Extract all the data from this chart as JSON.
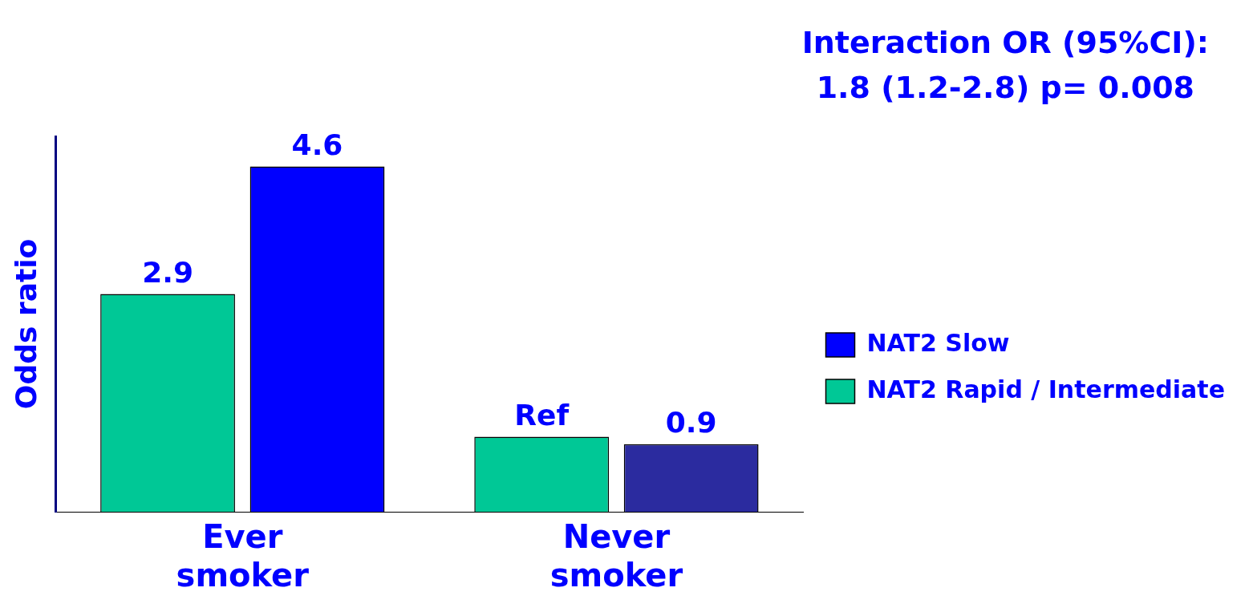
{
  "chart_data": {
    "type": "bar",
    "ylabel": "Odds ratio",
    "categories": [
      "Ever\nsmoker",
      "Never\nsmoker"
    ],
    "series": [
      {
        "name": "NAT2 Rapid / Intermediate",
        "color": "#00c896",
        "values": [
          2.9,
          1
        ],
        "value_labels": [
          "2.9",
          "Ref"
        ]
      },
      {
        "name": "NAT2 Slow",
        "colors": [
          "#0000ff",
          "#2b2b9f"
        ],
        "values": [
          4.6,
          0.9
        ],
        "value_labels": [
          "4.6",
          "0.9"
        ]
      }
    ],
    "annotations": [
      "Interaction OR (95%CI):",
      "1.8 (1.2-2.8)  p= 0.008"
    ],
    "legend": "right",
    "tick_labels": "x",
    "grid": false
  }
}
